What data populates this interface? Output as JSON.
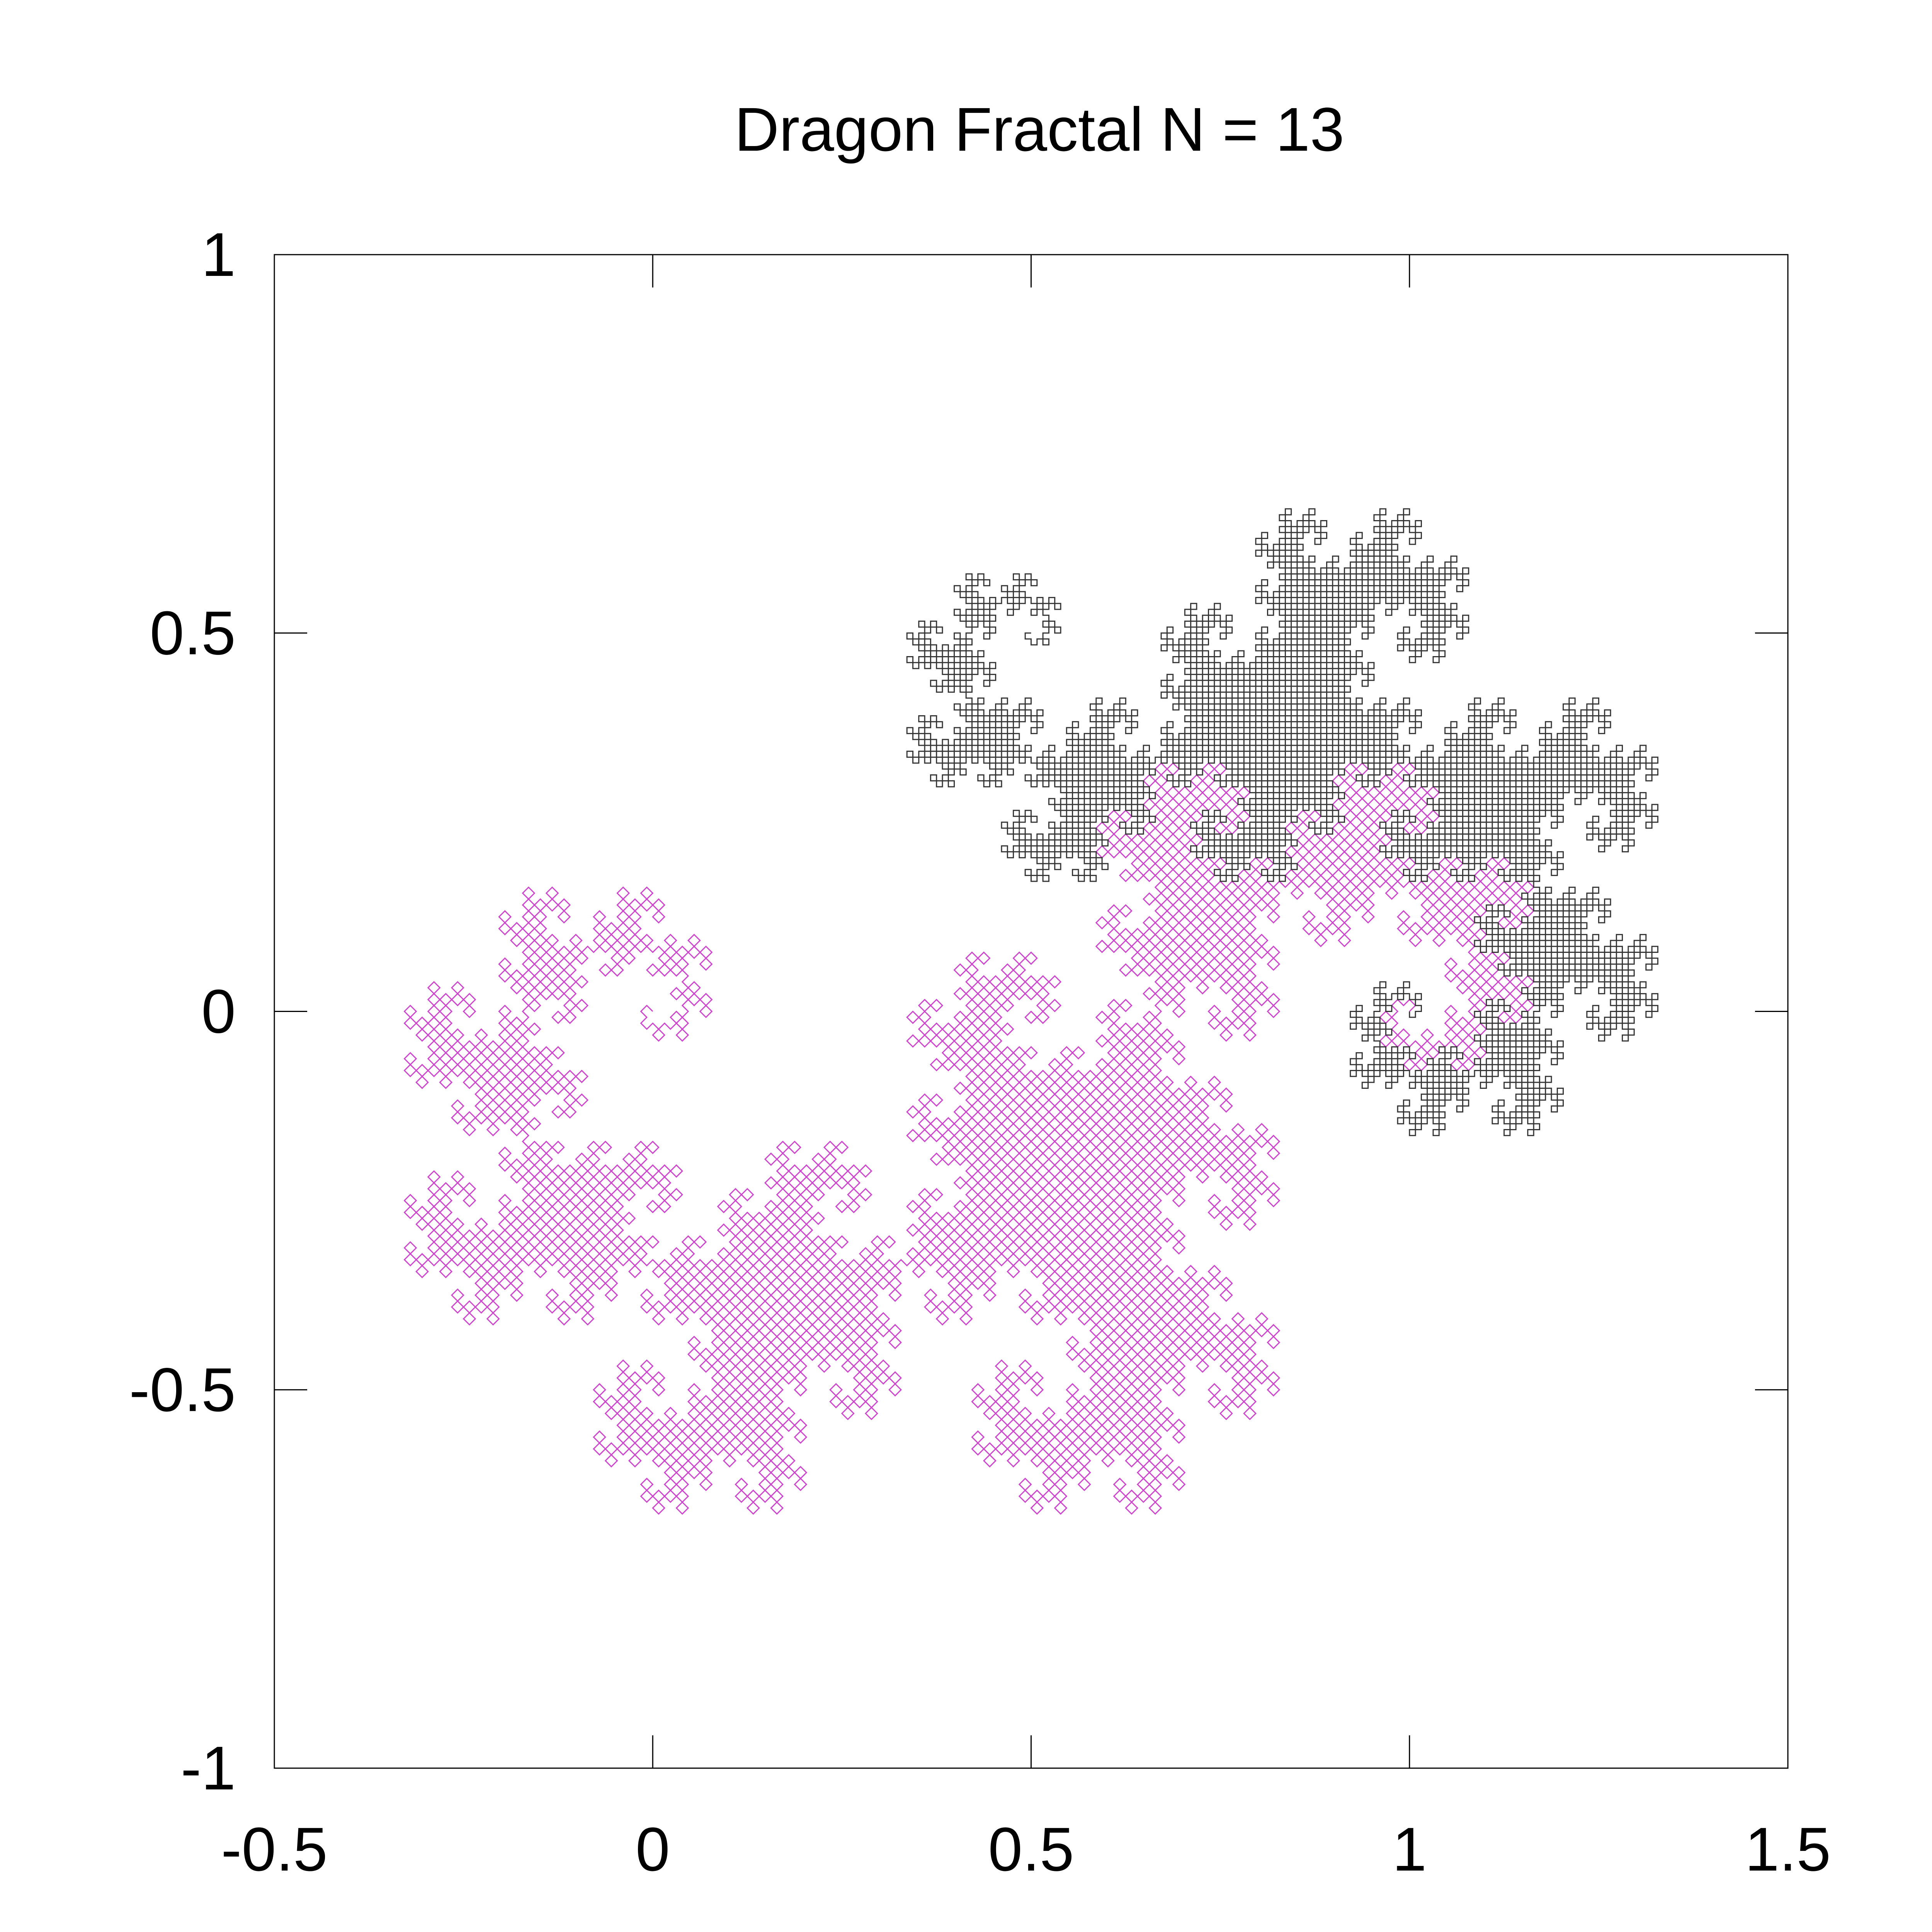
{
  "chart_data": {
    "type": "line",
    "title": "Dragon Fractal N = 13",
    "xlabel": "",
    "ylabel": "",
    "xlim": [
      -0.5,
      1.5
    ],
    "ylim": [
      -1,
      1
    ],
    "xticks": [
      -0.5,
      0,
      0.5,
      1,
      1.5
    ],
    "yticks": [
      -1,
      -0.5,
      0,
      0.5,
      1
    ],
    "xtick_labels": [
      "-0.5",
      "0",
      "0.5",
      "1",
      "1.5"
    ],
    "ytick_labels": [
      "-1",
      "-0.5",
      "0",
      "0.5",
      "1"
    ],
    "grid": false,
    "legend": "none",
    "series": [
      {
        "kind": "heighway-dragon",
        "iterations": 13,
        "start": [
          0,
          0
        ],
        "end": [
          1,
          0
        ],
        "color": "#cc44cc"
      },
      {
        "kind": "heighway-dragon",
        "iterations": 13,
        "start": [
          1,
          0
        ],
        "end": [
          0.5,
          0.5
        ],
        "color": "#333333"
      }
    ]
  }
}
